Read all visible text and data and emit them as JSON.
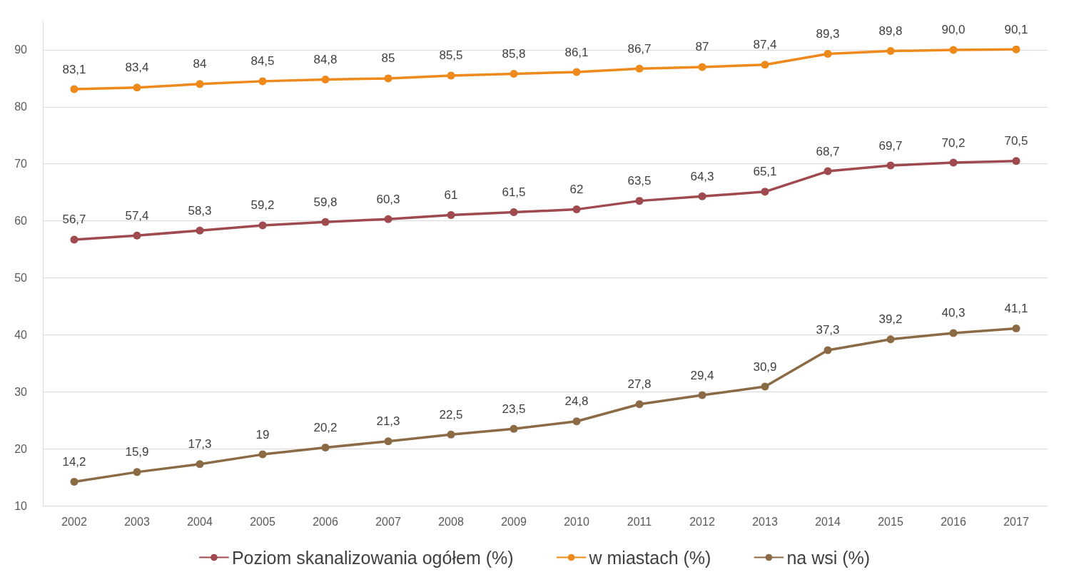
{
  "chart_data": {
    "type": "line",
    "categories": [
      "2002",
      "2003",
      "2004",
      "2005",
      "2006",
      "2007",
      "2008",
      "2009",
      "2010",
      "2011",
      "2012",
      "2013",
      "2014",
      "2015",
      "2016",
      "2017"
    ],
    "series": [
      {
        "name": "Poziom skanalizowania ogółem (%)",
        "color": "#9e4a4f",
        "values": [
          56.7,
          57.4,
          58.3,
          59.2,
          59.8,
          60.3,
          61,
          61.5,
          62,
          63.5,
          64.3,
          65.1,
          68.7,
          69.7,
          70.2,
          70.5
        ],
        "value_labels": [
          "56,7",
          "57,4",
          "58,3",
          "59,2",
          "59,8",
          "60,3",
          "61",
          "61,5",
          "62",
          "63,5",
          "64,3",
          "65,1",
          "68,7",
          "69,7",
          "70,2",
          "70,5"
        ]
      },
      {
        "name": "w miastach (%)",
        "color": "#f0891c",
        "values": [
          83.1,
          83.4,
          84,
          84.5,
          84.8,
          85,
          85.5,
          85.8,
          86.1,
          86.7,
          87,
          87.4,
          89.3,
          89.8,
          90.0,
          90.1
        ],
        "value_labels": [
          "83,1",
          "83,4",
          "84",
          "84,5",
          "84,8",
          "85",
          "85,5",
          "85,8",
          "86,1",
          "86,7",
          "87",
          "87,4",
          "89,3",
          "89,8",
          "90,0",
          "90,1"
        ]
      },
      {
        "name": "na wsi (%)",
        "color": "#8b6b45",
        "values": [
          14.2,
          15.9,
          17.3,
          19,
          20.2,
          21.3,
          22.5,
          23.5,
          24.8,
          27.8,
          29.4,
          30.9,
          37.3,
          39.2,
          40.3,
          41.1
        ],
        "value_labels": [
          "14,2",
          "15,9",
          "17,3",
          "19",
          "20,2",
          "21,3",
          "22,5",
          "23,5",
          "24,8",
          "27,8",
          "29,4",
          "30,9",
          "37,3",
          "39,2",
          "40,3",
          "41,1"
        ]
      }
    ],
    "ylim": [
      10,
      95
    ],
    "yticks": [
      10,
      20,
      30,
      40,
      50,
      60,
      70,
      80,
      90
    ],
    "grid": "y",
    "legend": "bottom",
    "marker": "circle",
    "line_style": "solid"
  }
}
